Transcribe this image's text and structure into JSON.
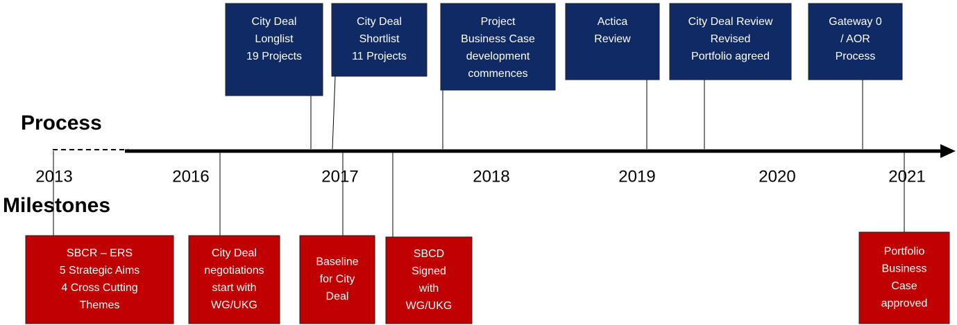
{
  "labels": {
    "process": "Process",
    "milestones": "Milestones"
  },
  "years": [
    "2013",
    "2016",
    "2017",
    "2018",
    "2019",
    "2020",
    "2021"
  ],
  "process": [
    {
      "lines": [
        "City Deal",
        "Longlist",
        "19 Projects"
      ]
    },
    {
      "lines": [
        "City Deal",
        "Shortlist",
        "11 Projects"
      ]
    },
    {
      "lines": [
        "Project",
        "Business Case",
        "development",
        "commences"
      ]
    },
    {
      "lines": [
        "Actica",
        "Review"
      ]
    },
    {
      "lines": [
        "City Deal Review",
        "Revised",
        "Portfolio agreed"
      ]
    },
    {
      "lines": [
        "Gateway 0",
        "/ AOR",
        "Process"
      ]
    }
  ],
  "milestones": [
    {
      "lines": [
        "SBCR – ERS",
        "5 Strategic Aims",
        "4 Cross Cutting",
        "Themes"
      ]
    },
    {
      "lines": [
        "City Deal",
        "negotiations",
        "start with",
        "WG/UKG"
      ]
    },
    {
      "lines": [
        "Baseline",
        "for City",
        "Deal"
      ]
    },
    {
      "lines": [
        "SBCD",
        "Signed",
        "with",
        "WG/UKG"
      ]
    },
    {
      "lines": [
        "Portfolio",
        "Business",
        "Case",
        "approved"
      ]
    }
  ]
}
